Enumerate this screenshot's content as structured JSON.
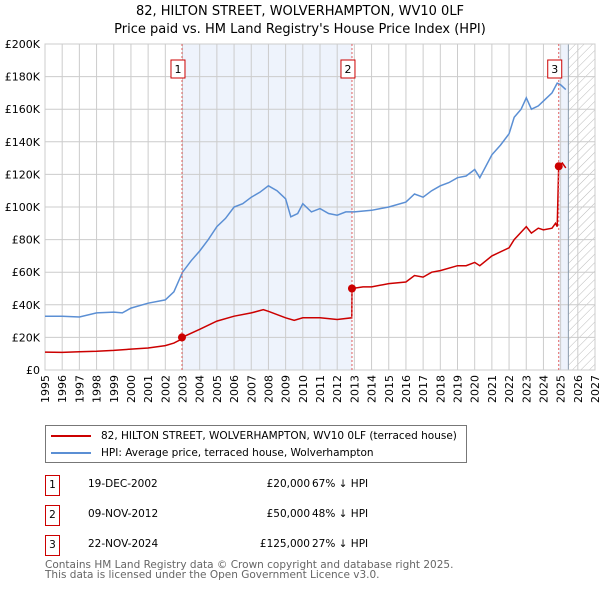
{
  "title_line1": "82, HILTON STREET, WOLVERHAMPTON, WV10 0LF",
  "title_line2": "Price paid vs. HM Land Registry's House Price Index (HPI)",
  "colors": {
    "property": "#cc0000",
    "hpi": "#5b8fd4",
    "shade": "#eef3fc",
    "grid": "#cccccc"
  },
  "chart_data": {
    "type": "line",
    "xlim": [
      1995,
      2027
    ],
    "ylim": [
      0,
      200000
    ],
    "x_ticks": [
      "1995",
      "1996",
      "1997",
      "1998",
      "1999",
      "2000",
      "2001",
      "2002",
      "2003",
      "2004",
      "2005",
      "2006",
      "2007",
      "2008",
      "2009",
      "2010",
      "2011",
      "2012",
      "2013",
      "2014",
      "2015",
      "2016",
      "2017",
      "2018",
      "2019",
      "2020",
      "2021",
      "2022",
      "2023",
      "2024",
      "2025",
      "2026",
      "2027"
    ],
    "y_ticks": [
      {
        "v": 0,
        "label": "£0"
      },
      {
        "v": 20000,
        "label": "£20K"
      },
      {
        "v": 40000,
        "label": "£40K"
      },
      {
        "v": 60000,
        "label": "£60K"
      },
      {
        "v": 80000,
        "label": "£80K"
      },
      {
        "v": 100000,
        "label": "£100K"
      },
      {
        "v": 120000,
        "label": "£120K"
      },
      {
        "v": 140000,
        "label": "£140K"
      },
      {
        "v": 160000,
        "label": "£160K"
      },
      {
        "v": 180000,
        "label": "£180K"
      },
      {
        "v": 200000,
        "label": "£200K"
      }
    ],
    "grid": true,
    "shaded_ranges": [
      [
        2002.97,
        2012.86
      ],
      [
        2024.89,
        2025.45
      ]
    ],
    "forecast_hatch": [
      2025.45,
      2027
    ],
    "series": [
      {
        "name": "82, HILTON STREET, WOLVERHAMPTON, WV10 0LF (terraced house)",
        "color": "#cc0000",
        "x": [
          1995,
          1996,
          1997,
          1998,
          1999,
          2000,
          2001,
          2002,
          2002.5,
          2002.96,
          2002.97,
          2004,
          2005,
          2006,
          2007,
          2007.7,
          2008,
          2009,
          2009.5,
          2010,
          2011,
          2012,
          2012.85,
          2012.86,
          2013.5,
          2014,
          2015,
          2016,
          2016.5,
          2017,
          2017.5,
          2018,
          2019,
          2019.5,
          2020,
          2020.3,
          2021,
          2022,
          2022.3,
          2023,
          2023.3,
          2023.7,
          2024,
          2024.5,
          2024.7,
          2024.8,
          2024.89,
          2025.1,
          2025.3
        ],
        "y": [
          11000,
          10800,
          11200,
          11500,
          12000,
          12800,
          13500,
          15000,
          16500,
          19000,
          20000,
          25000,
          30000,
          33000,
          35000,
          37000,
          36000,
          32000,
          30500,
          32000,
          32000,
          31000,
          32000,
          50000,
          51000,
          51000,
          53000,
          54000,
          58000,
          57000,
          60000,
          61000,
          64000,
          64000,
          66000,
          64000,
          70000,
          75000,
          80000,
          88000,
          84000,
          87000,
          86000,
          87000,
          90000,
          88000,
          125000,
          127000,
          124000
        ]
      },
      {
        "name": "HPI: Average price, terraced house, Wolverhampton",
        "color": "#5b8fd4",
        "x": [
          1995,
          1996,
          1997,
          1998,
          1999,
          1999.5,
          2000,
          2001,
          2002,
          2002.5,
          2003,
          2003.5,
          2004,
          2004.5,
          2005,
          2005.5,
          2006,
          2006.5,
          2007,
          2007.5,
          2008,
          2008.5,
          2009,
          2009.3,
          2009.7,
          2010,
          2010.5,
          2011,
          2011.5,
          2012,
          2012.5,
          2013,
          2014,
          2014.5,
          2015,
          2016,
          2016.5,
          2017,
          2017.5,
          2018,
          2018.5,
          2019,
          2019.5,
          2020,
          2020.3,
          2021,
          2021.5,
          2022,
          2022.3,
          2022.7,
          2023,
          2023.3,
          2023.7,
          2024,
          2024.5,
          2024.8,
          2025,
          2025.3
        ],
        "y": [
          33000,
          33000,
          32500,
          35000,
          35500,
          35000,
          38000,
          41000,
          43000,
          48000,
          60000,
          67000,
          73000,
          80000,
          88000,
          93000,
          100000,
          102000,
          106000,
          109000,
          113000,
          110000,
          105000,
          94000,
          96000,
          102000,
          97000,
          99000,
          96000,
          95000,
          97000,
          97000,
          98000,
          99000,
          100000,
          103000,
          108000,
          106000,
          110000,
          113000,
          115000,
          118000,
          119000,
          123000,
          118000,
          132000,
          138000,
          145000,
          155000,
          160000,
          167000,
          160000,
          162000,
          165000,
          170000,
          176000,
          175000,
          172000
        ]
      }
    ],
    "sales": [
      {
        "n": "1",
        "x": 2002.97,
        "y": 20000
      },
      {
        "n": "2",
        "x": 2012.86,
        "y": 50000
      },
      {
        "n": "3",
        "x": 2024.89,
        "y": 125000
      }
    ],
    "legend_position": "below"
  },
  "legend": {
    "property": "82, HILTON STREET, WOLVERHAMPTON, WV10 0LF (terraced house)",
    "hpi": "HPI: Average price, terraced house, Wolverhampton"
  },
  "transactions": [
    {
      "n": "1",
      "date": "19-DEC-2002",
      "price": "£20,000",
      "hpi": "67% ↓ HPI"
    },
    {
      "n": "2",
      "date": "09-NOV-2012",
      "price": "£50,000",
      "hpi": "48% ↓ HPI"
    },
    {
      "n": "3",
      "date": "22-NOV-2024",
      "price": "£125,000",
      "hpi": "27% ↓ HPI"
    }
  ],
  "footer_line1": "Contains HM Land Registry data © Crown copyright and database right 2025.",
  "footer_line2": "This data is licensed under the Open Government Licence v3.0."
}
